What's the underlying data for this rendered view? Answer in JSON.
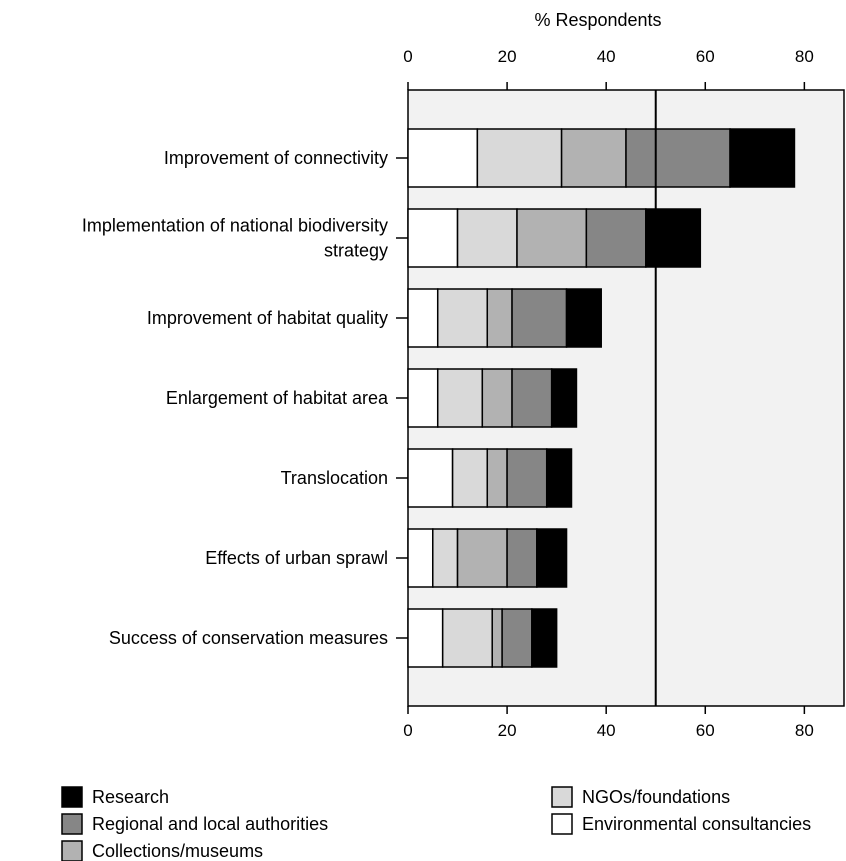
{
  "chart_data": {
    "type": "bar",
    "orientation": "horizontal",
    "stacked": true,
    "title": "",
    "xlabel": "% Respondents",
    "ylabel": "",
    "xlim": [
      0,
      88
    ],
    "top_ticks": [
      "0",
      "20",
      "40",
      "60",
      "80"
    ],
    "bottom_ticks": [
      "0",
      "20",
      "40",
      "60",
      "80"
    ],
    "tick_values": [
      0,
      20,
      40,
      60,
      80
    ],
    "reference_line": 50,
    "background": "#f2f2f2",
    "grid": false,
    "legend_position": "bottom",
    "categories": [
      [
        "Improvement of connectivity"
      ],
      [
        "Implementation of national biodiversity",
        "strategy"
      ],
      [
        "Improvement of habitat quality"
      ],
      [
        "Enlargement of habitat area"
      ],
      [
        "Translocation"
      ],
      [
        "Effects of urban sprawl"
      ],
      [
        "Success of conservation measures"
      ]
    ],
    "series": [
      {
        "name": "Environmental consultancies",
        "color": "#ffffff",
        "values": [
          14,
          10,
          6,
          6,
          9,
          5,
          7
        ]
      },
      {
        "name": "NGOs/foundations",
        "color": "#d9d9d9",
        "values": [
          17,
          12,
          10,
          9,
          7,
          5,
          10
        ]
      },
      {
        "name": "Collections/museums",
        "color": "#b2b2b2",
        "values": [
          13,
          14,
          5,
          6,
          4,
          10,
          2
        ]
      },
      {
        "name": "Regional and local authorities",
        "color": "#868686",
        "values": [
          21,
          12,
          11,
          8,
          8,
          6,
          6
        ]
      },
      {
        "name": "Research",
        "color": "#000000",
        "values": [
          13,
          11,
          7,
          5,
          5,
          6,
          5
        ]
      }
    ],
    "legend": [
      {
        "name": "Research",
        "color": "#000000"
      },
      {
        "name": "Regional and local authorities",
        "color": "#868686"
      },
      {
        "name": "Collections/museums",
        "color": "#b2b2b2"
      },
      {
        "name": "NGOs/foundations",
        "color": "#d9d9d9"
      },
      {
        "name": "Environmental consultancies",
        "color": "#ffffff"
      }
    ]
  }
}
